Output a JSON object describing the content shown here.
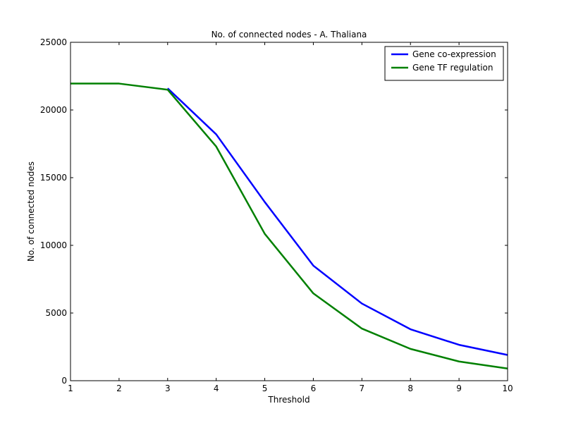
{
  "chart_data": {
    "type": "line",
    "title": "No. of connected nodes - A. Thaliana",
    "xlabel": "Threshold",
    "ylabel": "No. of connected nodes",
    "xlim": [
      1,
      10
    ],
    "ylim": [
      0,
      25000
    ],
    "xticks": [
      1,
      2,
      3,
      4,
      5,
      6,
      7,
      8,
      9,
      10
    ],
    "yticks": [
      0,
      5000,
      10000,
      15000,
      20000,
      25000
    ],
    "grid": false,
    "legend_position": "top-right",
    "series": [
      {
        "name": "Gene co-expression",
        "color": "#0000ff",
        "x": [
          3,
          4,
          5,
          6,
          7,
          8,
          9,
          10
        ],
        "y": [
          21600,
          18200,
          13200,
          8500,
          5700,
          3800,
          2650,
          1900
        ]
      },
      {
        "name": "Gene TF regulation",
        "color": "#008000",
        "x": [
          1,
          2,
          3,
          4,
          5,
          6,
          7,
          8,
          9,
          10
        ],
        "y": [
          21950,
          21950,
          21500,
          17300,
          10850,
          6450,
          3850,
          2350,
          1420,
          900
        ]
      }
    ]
  }
}
